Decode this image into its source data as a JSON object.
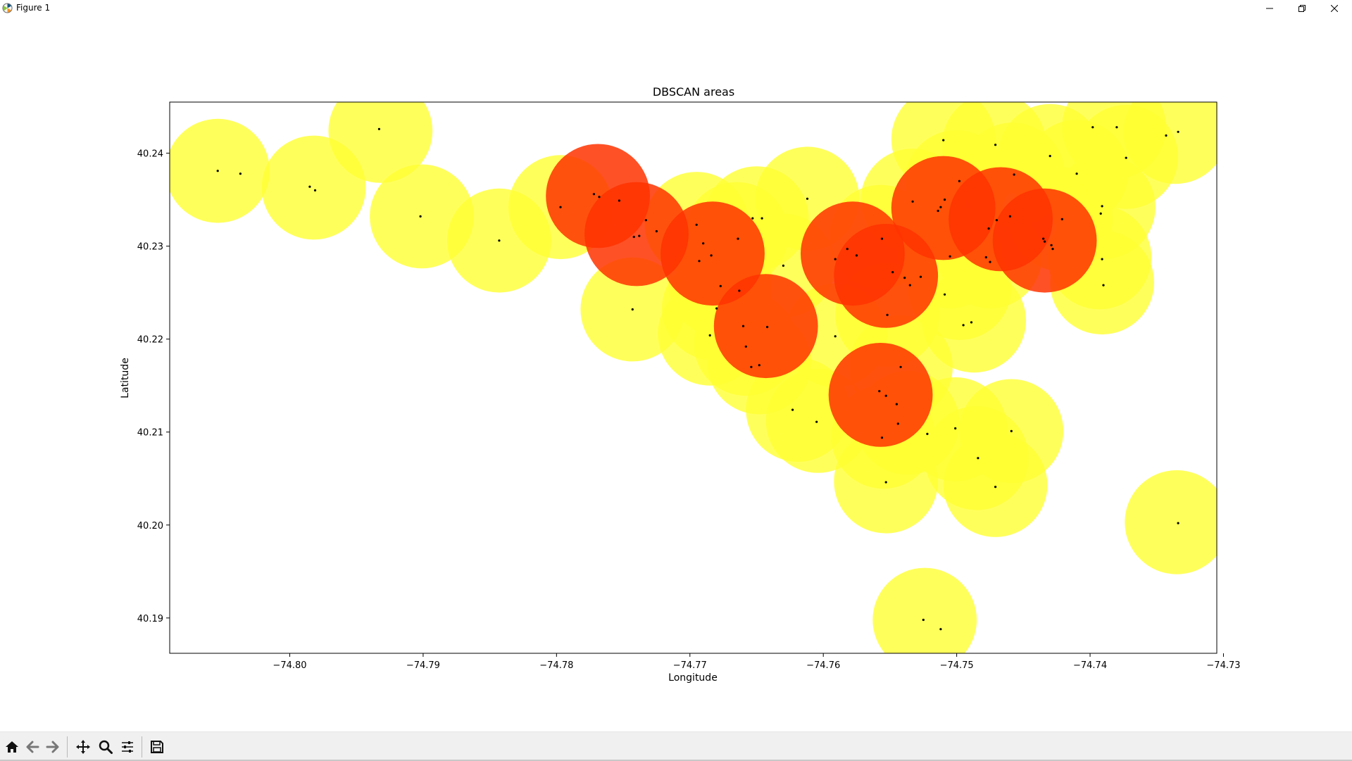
{
  "window": {
    "title": "Figure 1",
    "controls": {
      "minimize_icon": "minimize-icon",
      "restore_icon": "restore-icon",
      "close_icon": "close-icon"
    }
  },
  "toolbar": {
    "buttons": [
      {
        "name": "home-button",
        "icon": "home-icon"
      },
      {
        "name": "back-button",
        "icon": "back-arrow-icon"
      },
      {
        "name": "forward-button",
        "icon": "forward-arrow-icon"
      },
      {
        "name": "pan-button",
        "icon": "pan-move-icon"
      },
      {
        "name": "zoom-button",
        "icon": "zoom-magnifier-icon"
      },
      {
        "name": "configure-subplots-button",
        "icon": "sliders-icon"
      },
      {
        "name": "save-button",
        "icon": "save-floppy-icon"
      }
    ]
  },
  "chart_data": {
    "type": "scatter",
    "title": "DBSCAN areas",
    "xlabel": "Longitude",
    "ylabel": "Latitude",
    "xlim": [
      -74.809,
      -74.7305
    ],
    "ylim": [
      40.1862,
      40.2455
    ],
    "xticks": [
      -74.8,
      -74.79,
      -74.78,
      -74.77,
      -74.76,
      -74.75,
      -74.74,
      -74.73
    ],
    "xtick_labels": [
      "−74.80",
      "−74.79",
      "−74.78",
      "−74.77",
      "−74.76",
      "−74.75",
      "−74.74",
      "−74.73"
    ],
    "yticks": [
      40.19,
      40.2,
      40.21,
      40.22,
      40.23,
      40.24
    ],
    "ytick_labels": [
      "40.19",
      "40.20",
      "40.21",
      "40.22",
      "40.23",
      "40.24"
    ],
    "grid": false,
    "colors": {
      "noise_area": "#ffff33",
      "cluster_area": "#ff3300",
      "point": "#000000"
    },
    "area_radius_deg": 0.0039,
    "noise_areas": [
      [
        -74.8054,
        40.2381
      ],
      [
        -74.7982,
        40.2363
      ],
      [
        -74.7932,
        40.2424
      ],
      [
        -74.7901,
        40.2332
      ],
      [
        -74.7843,
        40.2306
      ],
      [
        -74.7797,
        40.2342
      ],
      [
        -74.7743,
        40.2232
      ],
      [
        -74.7695,
        40.2324
      ],
      [
        -74.7665,
        40.2313
      ],
      [
        -74.7677,
        40.2258
      ],
      [
        -74.7682,
        40.2233
      ],
      [
        -74.7685,
        40.2206
      ],
      [
        -74.7658,
        40.2195
      ],
      [
        -74.7648,
        40.2175
      ],
      [
        -74.765,
        40.233
      ],
      [
        -74.7612,
        40.2351
      ],
      [
        -74.763,
        40.2279
      ],
      [
        -74.7591,
        40.2204
      ],
      [
        -74.7619,
        40.2124
      ],
      [
        -74.7604,
        40.2112
      ],
      [
        -74.7557,
        40.231
      ],
      [
        -74.7552,
        40.2226
      ],
      [
        -74.7542,
        40.217
      ],
      [
        -74.7555,
        40.2095
      ],
      [
        -74.7537,
        40.211
      ],
      [
        -74.7553,
        40.2047
      ],
      [
        -74.7533,
        40.2349
      ],
      [
        -74.751,
        40.2415
      ],
      [
        -74.75,
        40.2369
      ],
      [
        -74.7505,
        40.2289
      ],
      [
        -74.7498,
        40.2255
      ],
      [
        -74.7487,
        40.222
      ],
      [
        -74.7475,
        40.2289
      ],
      [
        -74.7501,
        40.2103
      ],
      [
        -74.7485,
        40.2072
      ],
      [
        -74.7471,
        40.2043
      ],
      [
        -74.7459,
        40.2101
      ],
      [
        -74.7472,
        40.2409
      ],
      [
        -74.7458,
        40.2377
      ],
      [
        -74.743,
        40.2397
      ],
      [
        -74.741,
        40.238
      ],
      [
        -74.7422,
        40.2329
      ],
      [
        -74.739,
        40.2342
      ],
      [
        -74.7393,
        40.2288
      ],
      [
        -74.7391,
        40.2261
      ],
      [
        -74.7382,
        40.2428
      ],
      [
        -74.7373,
        40.2396
      ],
      [
        -74.7336,
        40.2423
      ],
      [
        -74.7335,
        40.2003
      ],
      [
        -74.7524,
        40.1898
      ]
    ],
    "cluster_areas": [
      [
        -74.7769,
        40.2354
      ],
      [
        -74.774,
        40.2313
      ],
      [
        -74.7683,
        40.2292
      ],
      [
        -74.7643,
        40.2214
      ],
      [
        -74.7578,
        40.2292
      ],
      [
        -74.7553,
        40.2268
      ],
      [
        -74.7557,
        40.214
      ],
      [
        -74.751,
        40.2341
      ],
      [
        -74.7467,
        40.2329
      ],
      [
        -74.7434,
        40.2306
      ]
    ],
    "points": [
      [
        -74.8054,
        40.2381
      ],
      [
        -74.8037,
        40.2378
      ],
      [
        -74.7985,
        40.2364
      ],
      [
        -74.7981,
        40.236
      ],
      [
        -74.7933,
        40.2426
      ],
      [
        -74.7902,
        40.2332
      ],
      [
        -74.7843,
        40.2306
      ],
      [
        -74.7797,
        40.2342
      ],
      [
        -74.7772,
        40.2356
      ],
      [
        -74.7768,
        40.2353
      ],
      [
        -74.7753,
        40.2349
      ],
      [
        -74.7733,
        40.2328
      ],
      [
        -74.7742,
        40.231
      ],
      [
        -74.7738,
        40.2311
      ],
      [
        -74.7725,
        40.2316
      ],
      [
        -74.7743,
        40.2232
      ],
      [
        -74.7695,
        40.2323
      ],
      [
        -74.769,
        40.2303
      ],
      [
        -74.7684,
        40.229
      ],
      [
        -74.7693,
        40.2284
      ],
      [
        -74.7664,
        40.2308
      ],
      [
        -74.7677,
        40.2257
      ],
      [
        -74.7663,
        40.2252
      ],
      [
        -74.768,
        40.2233
      ],
      [
        -74.7685,
        40.2204
      ],
      [
        -74.766,
        40.2214
      ],
      [
        -74.7642,
        40.2213
      ],
      [
        -74.7658,
        40.2192
      ],
      [
        -74.7654,
        40.217
      ],
      [
        -74.7648,
        40.2172
      ],
      [
        -74.7653,
        40.233
      ],
      [
        -74.7646,
        40.233
      ],
      [
        -74.7612,
        40.2351
      ],
      [
        -74.763,
        40.2279
      ],
      [
        -74.7591,
        40.2203
      ],
      [
        -74.7623,
        40.2124
      ],
      [
        -74.7605,
        40.2111
      ],
      [
        -74.7591,
        40.2286
      ],
      [
        -74.7582,
        40.2297
      ],
      [
        -74.7575,
        40.229
      ],
      [
        -74.7556,
        40.2308
      ],
      [
        -74.7548,
        40.2272
      ],
      [
        -74.7539,
        40.2266
      ],
      [
        -74.7535,
        40.2258
      ],
      [
        -74.7527,
        40.2267
      ],
      [
        -74.7552,
        40.2226
      ],
      [
        -74.7542,
        40.217
      ],
      [
        -74.7558,
        40.2144
      ],
      [
        -74.7553,
        40.2139
      ],
      [
        -74.7545,
        40.213
      ],
      [
        -74.7544,
        40.2109
      ],
      [
        -74.7556,
        40.2094
      ],
      [
        -74.7522,
        40.2098
      ],
      [
        -74.7553,
        40.2046
      ],
      [
        -74.7533,
        40.2348
      ],
      [
        -74.751,
        40.2414
      ],
      [
        -74.7498,
        40.237
      ],
      [
        -74.7509,
        40.235
      ],
      [
        -74.7512,
        40.2342
      ],
      [
        -74.7514,
        40.2338
      ],
      [
        -74.7505,
        40.2289
      ],
      [
        -74.7509,
        40.2248
      ],
      [
        -74.7495,
        40.2215
      ],
      [
        -74.7489,
        40.2218
      ],
      [
        -74.7478,
        40.2288
      ],
      [
        -74.7475,
        40.2283
      ],
      [
        -74.7501,
        40.2104
      ],
      [
        -74.7484,
        40.2072
      ],
      [
        -74.7471,
        40.2041
      ],
      [
        -74.7459,
        40.2101
      ],
      [
        -74.7471,
        40.2409
      ],
      [
        -74.7457,
        40.2377
      ],
      [
        -74.747,
        40.2328
      ],
      [
        -74.7476,
        40.2319
      ],
      [
        -74.746,
        40.2332
      ],
      [
        -74.7435,
        40.2308
      ],
      [
        -74.7434,
        40.2305
      ],
      [
        -74.7429,
        40.2301
      ],
      [
        -74.7428,
        40.2297
      ],
      [
        -74.743,
        40.2397
      ],
      [
        -74.741,
        40.2378
      ],
      [
        -74.7421,
        40.2329
      ],
      [
        -74.7391,
        40.2343
      ],
      [
        -74.7392,
        40.2335
      ],
      [
        -74.7391,
        40.2286
      ],
      [
        -74.739,
        40.2258
      ],
      [
        -74.7398,
        40.2428
      ],
      [
        -74.738,
        40.2428
      ],
      [
        -74.7373,
        40.2395
      ],
      [
        -74.7343,
        40.2419
      ],
      [
        -74.7334,
        40.2423
      ],
      [
        -74.7334,
        40.2002
      ],
      [
        -74.7525,
        40.1898
      ],
      [
        -74.7512,
        40.1888
      ]
    ]
  }
}
